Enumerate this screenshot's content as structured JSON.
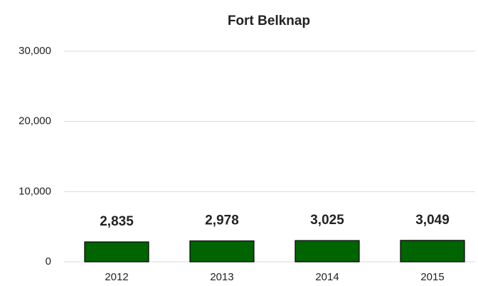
{
  "chart_data": {
    "type": "bar",
    "title": "Fort Belknap",
    "categories": [
      "2012",
      "2013",
      "2014",
      "2015"
    ],
    "values": [
      2835,
      2978,
      3025,
      3049
    ],
    "value_labels": [
      "2,835",
      "2,978",
      "3,025",
      "3,049"
    ],
    "color": "#006400",
    "ylim": [
      0,
      30000
    ],
    "yticks": [
      0,
      {
        "value": 10000,
        "label": "10,000"
      },
      {
        "value": 20000,
        "label": "20,000"
      },
      {
        "value": 30000,
        "label": "30,000"
      }
    ],
    "grid": true
  }
}
